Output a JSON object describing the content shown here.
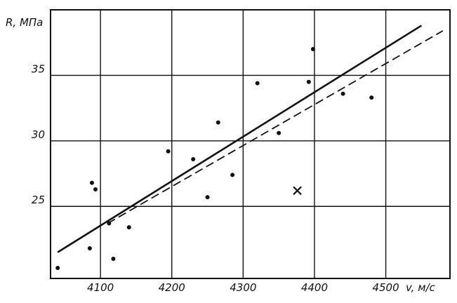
{
  "chart_data": {
    "type": "scatter",
    "title": "",
    "xlabel": "v, м/с",
    "ylabel": "R, МПа",
    "xlim": [
      4030,
      4590
    ],
    "ylim": [
      19.5,
      40
    ],
    "grid": true,
    "x_ticks": [
      "4100",
      "4200",
      "4300",
      "4400",
      "4500"
    ],
    "x_tick_values": [
      4100,
      4200,
      4300,
      4400,
      4500
    ],
    "y_ticks": [
      "25",
      "30",
      "35"
    ],
    "y_tick_values": [
      25,
      30,
      35
    ],
    "points": [
      {
        "x": 4040,
        "y": 20.3
      },
      {
        "x": 4085,
        "y": 21.8
      },
      {
        "x": 4088,
        "y": 26.8
      },
      {
        "x": 4093,
        "y": 26.3
      },
      {
        "x": 4112,
        "y": 23.7
      },
      {
        "x": 4118,
        "y": 21.0
      },
      {
        "x": 4140,
        "y": 23.4
      },
      {
        "x": 4195,
        "y": 29.2
      },
      {
        "x": 4230,
        "y": 28.6
      },
      {
        "x": 4250,
        "y": 25.7
      },
      {
        "x": 4265,
        "y": 31.4
      },
      {
        "x": 4285,
        "y": 27.4
      },
      {
        "x": 4320,
        "y": 34.4
      },
      {
        "x": 4350,
        "y": 30.6
      },
      {
        "x": 4392,
        "y": 34.5
      },
      {
        "x": 4398,
        "y": 37.0
      },
      {
        "x": 4440,
        "y": 33.6
      },
      {
        "x": 4480,
        "y": 33.3
      }
    ],
    "outliers": [
      {
        "x": 4376,
        "y": 26.2,
        "marker": "x"
      }
    ],
    "series": [
      {
        "style": "solid",
        "x": [
          4040,
          4550
        ],
        "y": [
          21.5,
          38.8
        ]
      },
      {
        "style": "dashed",
        "x": [
          4110,
          4580
        ],
        "y": [
          23.7,
          38.4
        ]
      }
    ],
    "colors": {
      "ink": "#111111",
      "grid": "#111111",
      "background": "#ffffff"
    }
  }
}
